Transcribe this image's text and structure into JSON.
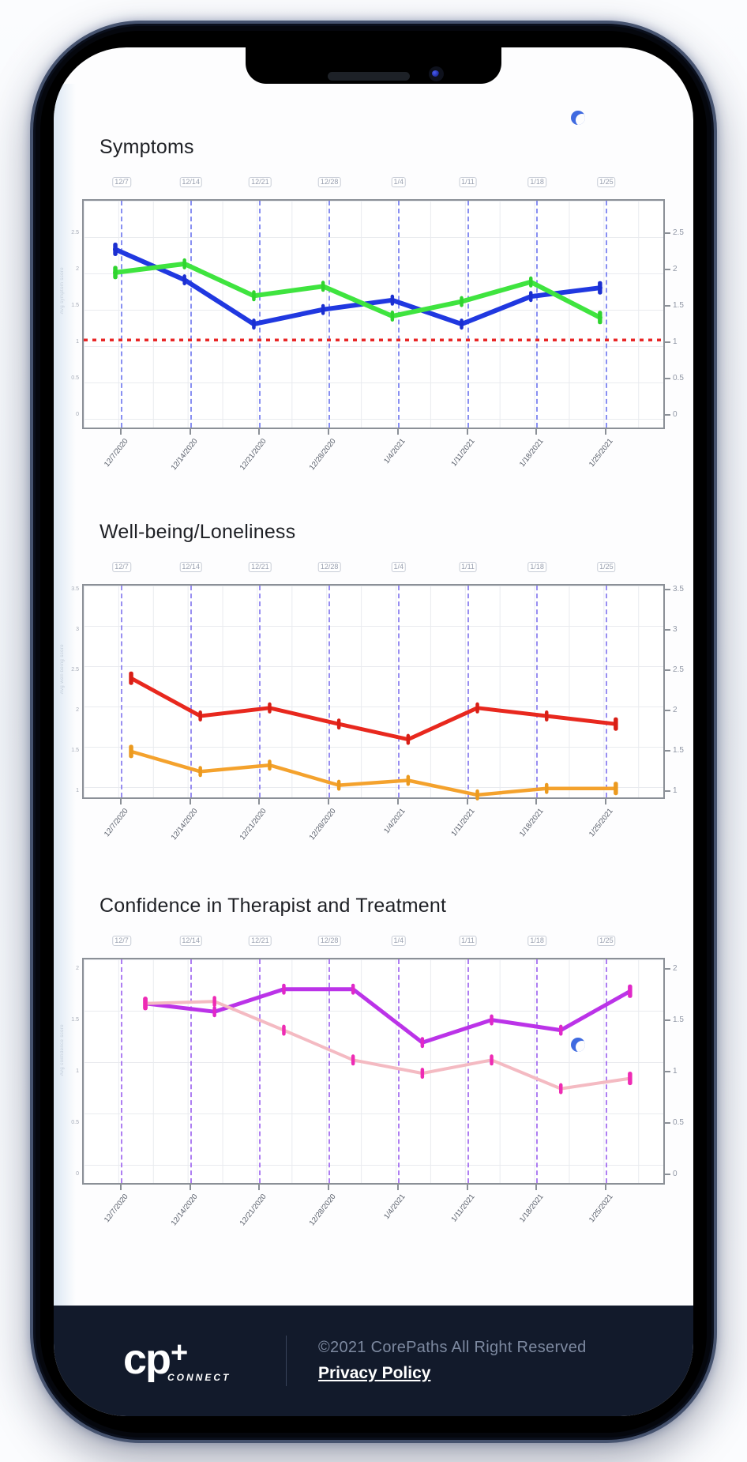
{
  "footer": {
    "logo_main": "cp",
    "logo_plus": "+",
    "logo_sub": "CONNECT",
    "copyright": "©2021 CorePaths All Right Reserved",
    "privacy_label": "Privacy Policy",
    "bg_color": "#121a2b"
  },
  "colors": {
    "threshold_red": "#e82626",
    "dashed_blue": "#6b74f0",
    "dashed_violet": "#7f72ee",
    "dashed_purple": "#9a5ff0"
  },
  "chart_data": [
    {
      "type": "line",
      "title": "Symptoms",
      "accent": "#6b74f0",
      "axis_title": "Avg symptom score",
      "x_top_labels": [
        "12/7",
        "12/14",
        "12/21",
        "12/28",
        "1/4",
        "1/11",
        "1/18",
        "1/25"
      ],
      "x_labels": [
        "12/7/2020",
        "12/14/2020",
        "12/21/2020",
        "12/28/2020",
        "1/4/2021",
        "1/11/2021",
        "1/18/2021",
        "1/25/2021"
      ],
      "ylim": [
        -0.2,
        2.97
      ],
      "right_ticks": [
        {
          "v": 2.5,
          "label": "2.5"
        },
        {
          "v": 2.0,
          "label": "2"
        },
        {
          "v": 1.5,
          "label": "1.5"
        },
        {
          "v": 1.0,
          "label": "1"
        },
        {
          "v": 0.5,
          "label": "0.5"
        },
        {
          "v": 0.0,
          "label": "0"
        }
      ],
      "threshold": {
        "value": 1.05,
        "color": "#e82626",
        "style": "dotted"
      },
      "series": [
        {
          "name": "symptoms-blue",
          "color": "#2038e0",
          "marker_color": "#1b2fd0",
          "width": 6,
          "values": [
            2.3,
            1.88,
            1.27,
            1.47,
            1.6,
            1.27,
            1.65,
            1.77
          ]
        },
        {
          "name": "symptoms-green",
          "color": "#3fe43f",
          "marker_color": "#2fd42f",
          "width": 6,
          "values": [
            1.98,
            2.1,
            1.66,
            1.79,
            1.38,
            1.58,
            1.85,
            1.36
          ]
        }
      ],
      "point_offset": -6
    },
    {
      "type": "line",
      "title": "Well-being/Loneliness",
      "accent": "#7f72ee",
      "axis_title": "Avg well-being score",
      "x_top_labels": [
        "12/7",
        "12/14",
        "12/21",
        "12/28",
        "1/4",
        "1/11",
        "1/18",
        "1/25"
      ],
      "x_labels": [
        "12/7/2020",
        "12/14/2020",
        "12/21/2020",
        "12/28/2020",
        "1/4/2021",
        "1/11/2021",
        "1/18/2021",
        "1/25/2021"
      ],
      "ylim": [
        0.9,
        3.57
      ],
      "right_ticks": [
        {
          "v": 3.5,
          "label": "3.5"
        },
        {
          "v": 3.0,
          "label": "3"
        },
        {
          "v": 2.5,
          "label": "2.5"
        },
        {
          "v": 2.0,
          "label": "2"
        },
        {
          "v": 1.5,
          "label": "1.5"
        },
        {
          "v": 1.0,
          "label": "1"
        }
      ],
      "series": [
        {
          "name": "wellbeing-red",
          "color": "#e8281e",
          "marker_color": "#d81f16",
          "width": 5,
          "values": [
            2.42,
            1.95,
            2.05,
            1.85,
            1.66,
            2.05,
            1.95,
            1.85
          ]
        },
        {
          "name": "loneliness-orange",
          "color": "#f4a22d",
          "marker_color": "#eb9a1f",
          "width": 4.5,
          "values": [
            1.51,
            1.26,
            1.34,
            1.09,
            1.15,
            0.97,
            1.05,
            1.05
          ]
        }
      ],
      "point_offset": 14
    },
    {
      "type": "line",
      "title": "Confidence in Therapist and Treatment",
      "accent": "#9a5ff0",
      "axis_title": "Avg confidence score",
      "x_top_labels": [
        "12/7",
        "12/14",
        "12/21",
        "12/28",
        "1/4",
        "1/11",
        "1/18",
        "1/25"
      ],
      "x_labels": [
        "12/7/2020",
        "12/14/2020",
        "12/21/2020",
        "12/28/2020",
        "1/4/2021",
        "1/11/2021",
        "1/18/2021",
        "1/25/2021"
      ],
      "ylim": [
        -0.1,
        2.11
      ],
      "right_ticks": [
        {
          "v": 2.0,
          "label": "2"
        },
        {
          "v": 1.5,
          "label": "1.5"
        },
        {
          "v": 1.0,
          "label": "1"
        },
        {
          "v": 0.5,
          "label": "0.5"
        },
        {
          "v": 0.0,
          "label": "0"
        }
      ],
      "series": [
        {
          "name": "confidence-magenta",
          "color": "#bb33e8",
          "marker_color": "#e028c8",
          "width": 5,
          "values": [
            1.68,
            1.6,
            1.82,
            1.82,
            1.3,
            1.52,
            1.42,
            1.8
          ]
        },
        {
          "name": "confidence-pink",
          "color": "#f4bac2",
          "marker_color": "#ee2bb4",
          "width": 4,
          "values": [
            1.68,
            1.7,
            1.42,
            1.13,
            1.0,
            1.13,
            0.85,
            0.95
          ]
        }
      ],
      "point_offset": 32
    }
  ]
}
